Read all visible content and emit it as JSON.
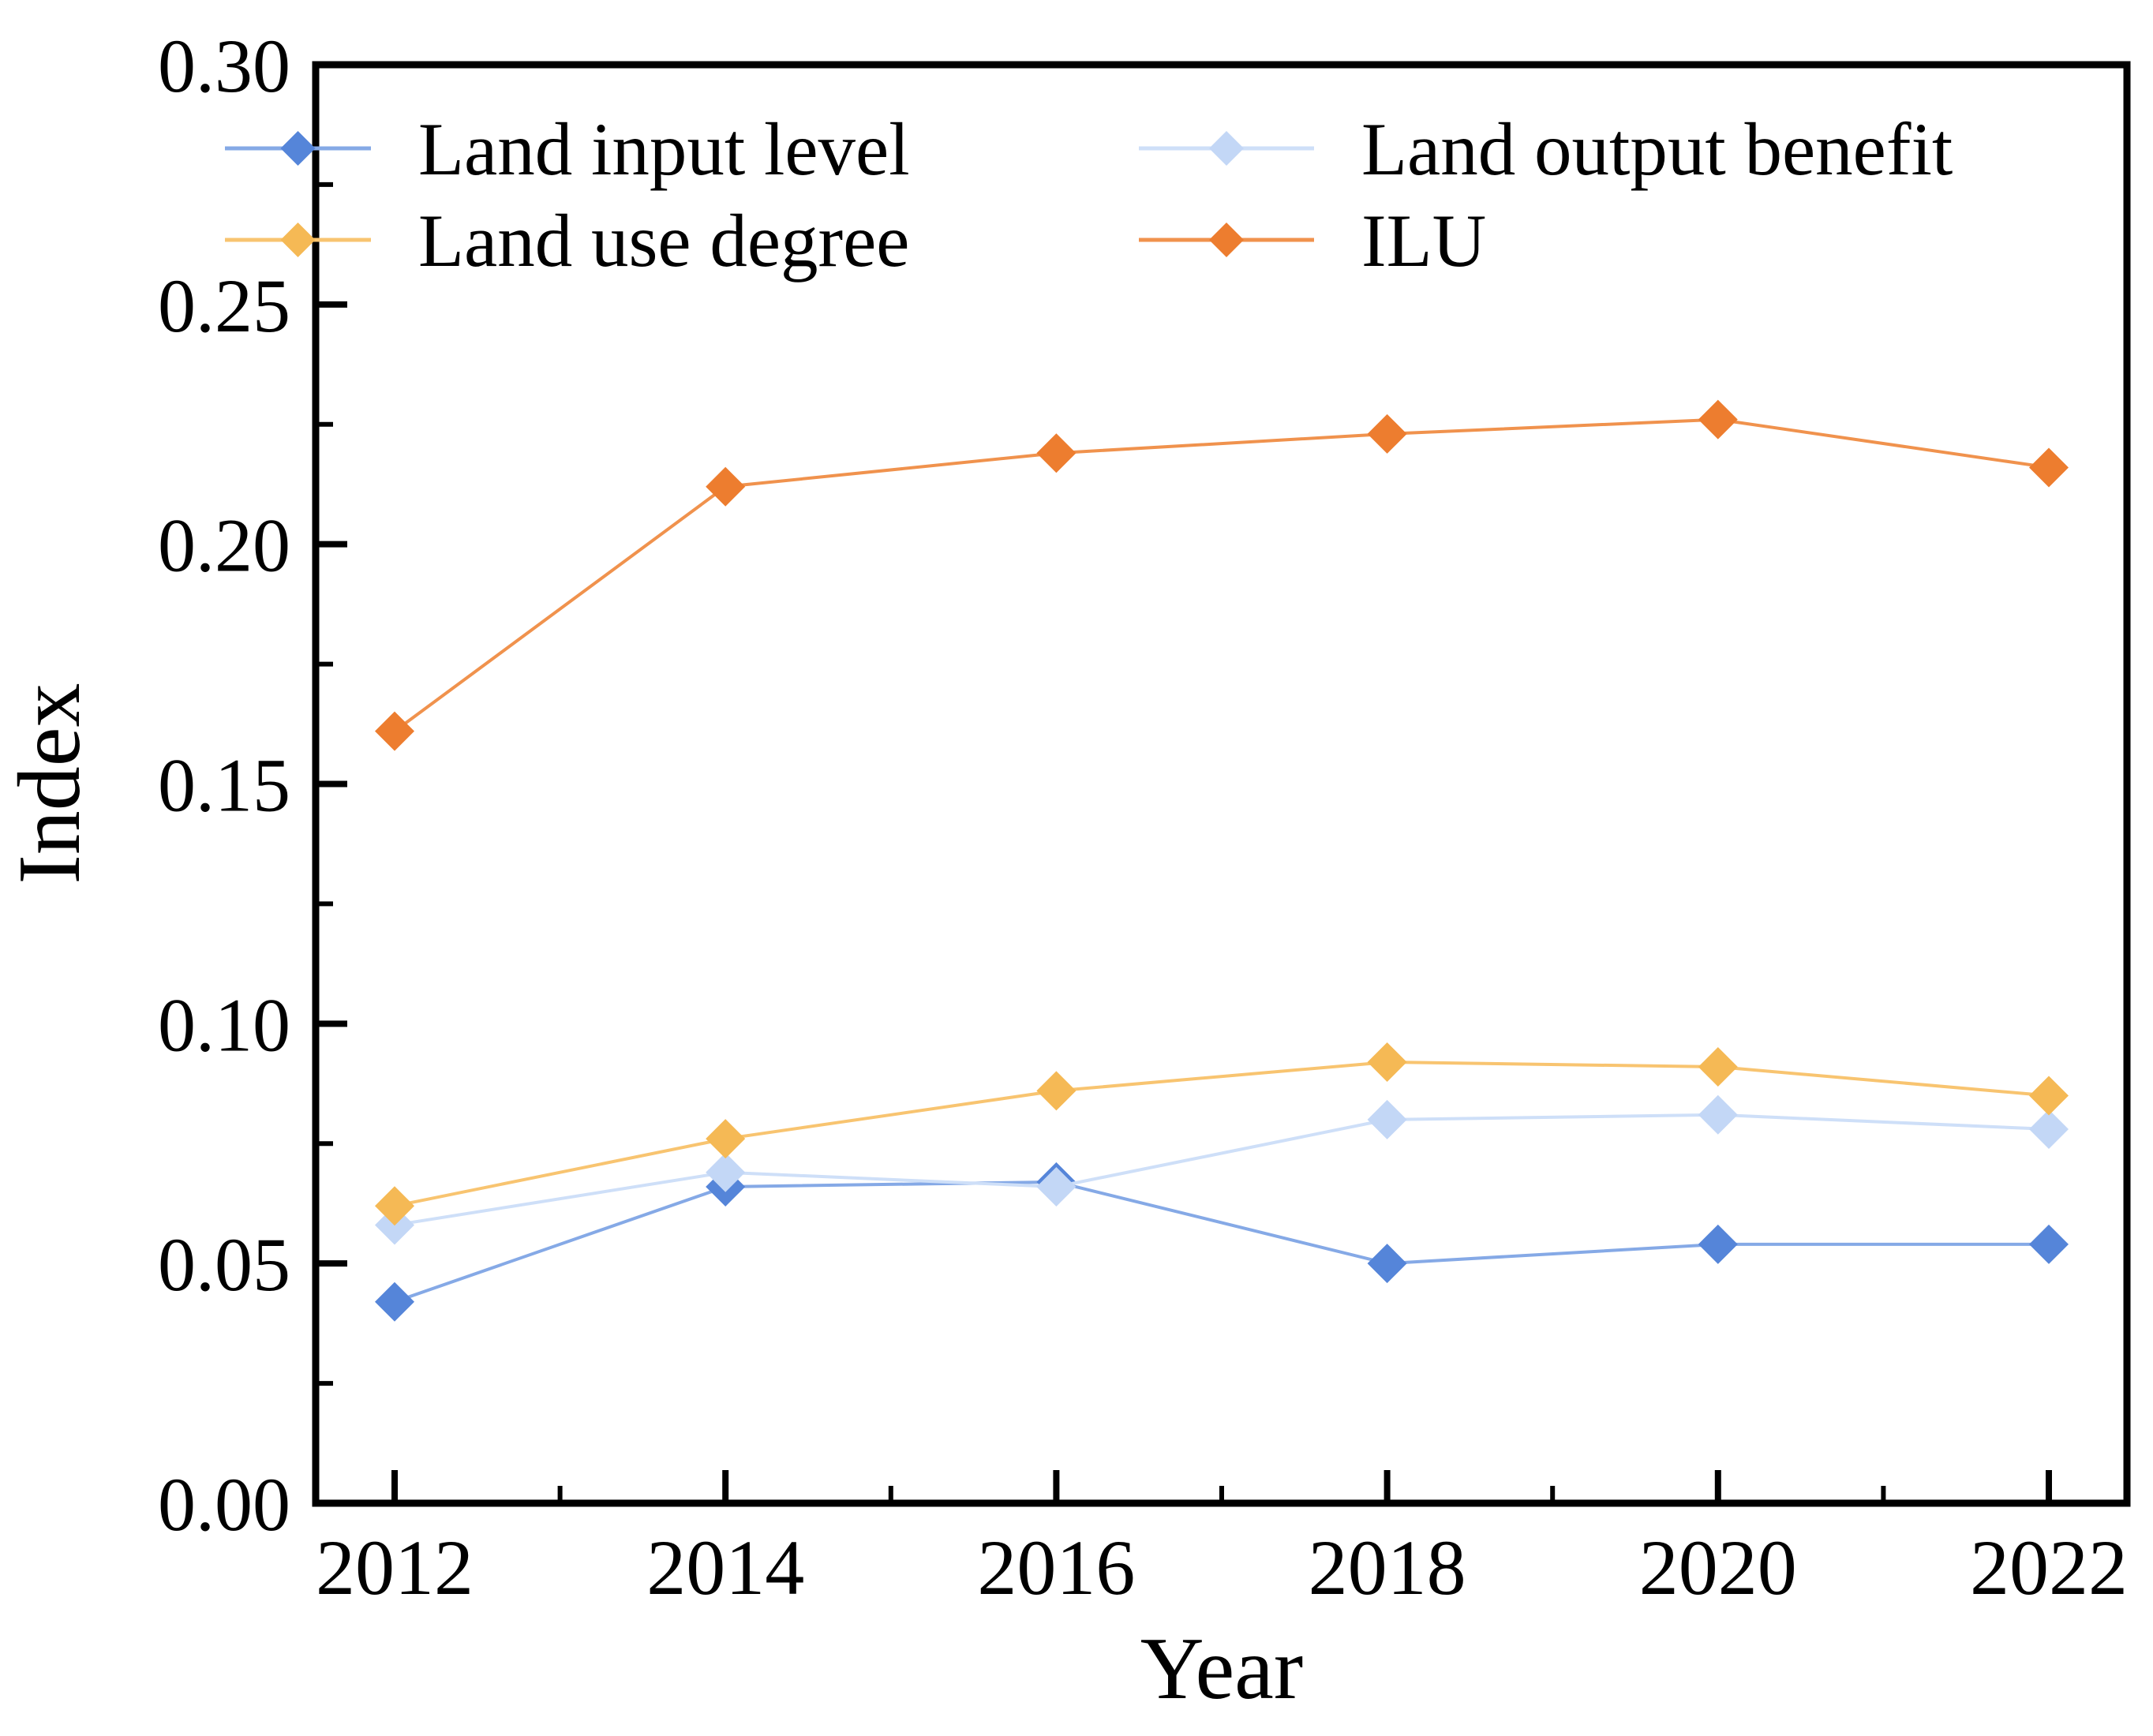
{
  "figure": {
    "background": "#ffffff",
    "frame_color": "#000000"
  },
  "chart_data": {
    "type": "line",
    "title": "",
    "xlabel": "Year",
    "ylabel": "Index",
    "x": [
      2012,
      2014,
      2016,
      2018,
      2020,
      2022
    ],
    "x_tick_labels": [
      "2012",
      "2014",
      "2016",
      "2018",
      "2020",
      "2022"
    ],
    "x_minor_ticks": [
      2013,
      2015,
      2017,
      2019,
      2021
    ],
    "ylim": [
      0.0,
      0.3
    ],
    "y_major_step": 0.05,
    "y_minor_step": 0.025,
    "y_tick_labels": [
      "0.00",
      "0.05",
      "0.10",
      "0.15",
      "0.20",
      "0.25",
      "0.30"
    ],
    "grid": false,
    "legend_position": "top-inside-2x2",
    "marker": "diamond",
    "series": [
      {
        "name": "Land input level",
        "values": [
          0.042,
          0.066,
          0.067,
          0.05,
          0.054,
          0.054
        ],
        "marker_color": "#5585D9",
        "line_color": "#85A9E6"
      },
      {
        "name": "Land output benefit",
        "values": [
          0.058,
          0.069,
          0.066,
          0.08,
          0.081,
          0.078
        ],
        "marker_color": "#C3D7F6",
        "line_color": "#CEDFF8"
      },
      {
        "name": "Land use degree",
        "values": [
          0.062,
          0.076,
          0.086,
          0.092,
          0.091,
          0.085
        ],
        "marker_color": "#F5B955",
        "line_color": "#F8C470"
      },
      {
        "name": "ILU",
        "values": [
          0.161,
          0.212,
          0.219,
          0.223,
          0.226,
          0.216
        ],
        "marker_color": "#ED7D2F",
        "line_color": "#F0924D"
      }
    ]
  }
}
